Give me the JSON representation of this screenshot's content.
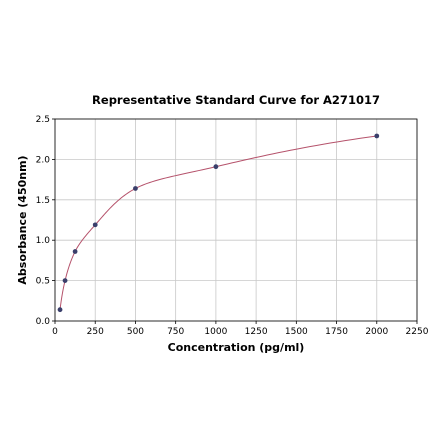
{
  "chart_data": {
    "type": "scatter",
    "title": "Representative Standard Curve for A271017",
    "xlabel": "Concentration (pg/ml)",
    "ylabel": "Absorbance (450nm)",
    "xlim": [
      0,
      2250
    ],
    "ylim": [
      0,
      2.5
    ],
    "xticks": [
      0,
      250,
      500,
      750,
      1000,
      1250,
      1500,
      1750,
      2000,
      2250
    ],
    "yticks": [
      0.0,
      0.5,
      1.0,
      1.5,
      2.0,
      2.5
    ],
    "xtick_labels": [
      "0",
      "250",
      "500",
      "750",
      "1000",
      "1250",
      "1500",
      "1750",
      "2000",
      "2250"
    ],
    "ytick_labels": [
      "0.0",
      "0.5",
      "1.0",
      "1.5",
      "2.0",
      "2.5"
    ],
    "grid": true,
    "series": [
      {
        "points": [
          {
            "x": 31.25,
            "y": 0.14
          },
          {
            "x": 62.5,
            "y": 0.5
          },
          {
            "x": 125,
            "y": 0.86
          },
          {
            "x": 250,
            "y": 1.19
          },
          {
            "x": 500,
            "y": 1.64
          },
          {
            "x": 1000,
            "y": 1.91
          },
          {
            "x": 2000,
            "y": 2.29
          }
        ],
        "marker_color": "#3a3f6b",
        "curve_color": "#b5526b"
      }
    ]
  }
}
